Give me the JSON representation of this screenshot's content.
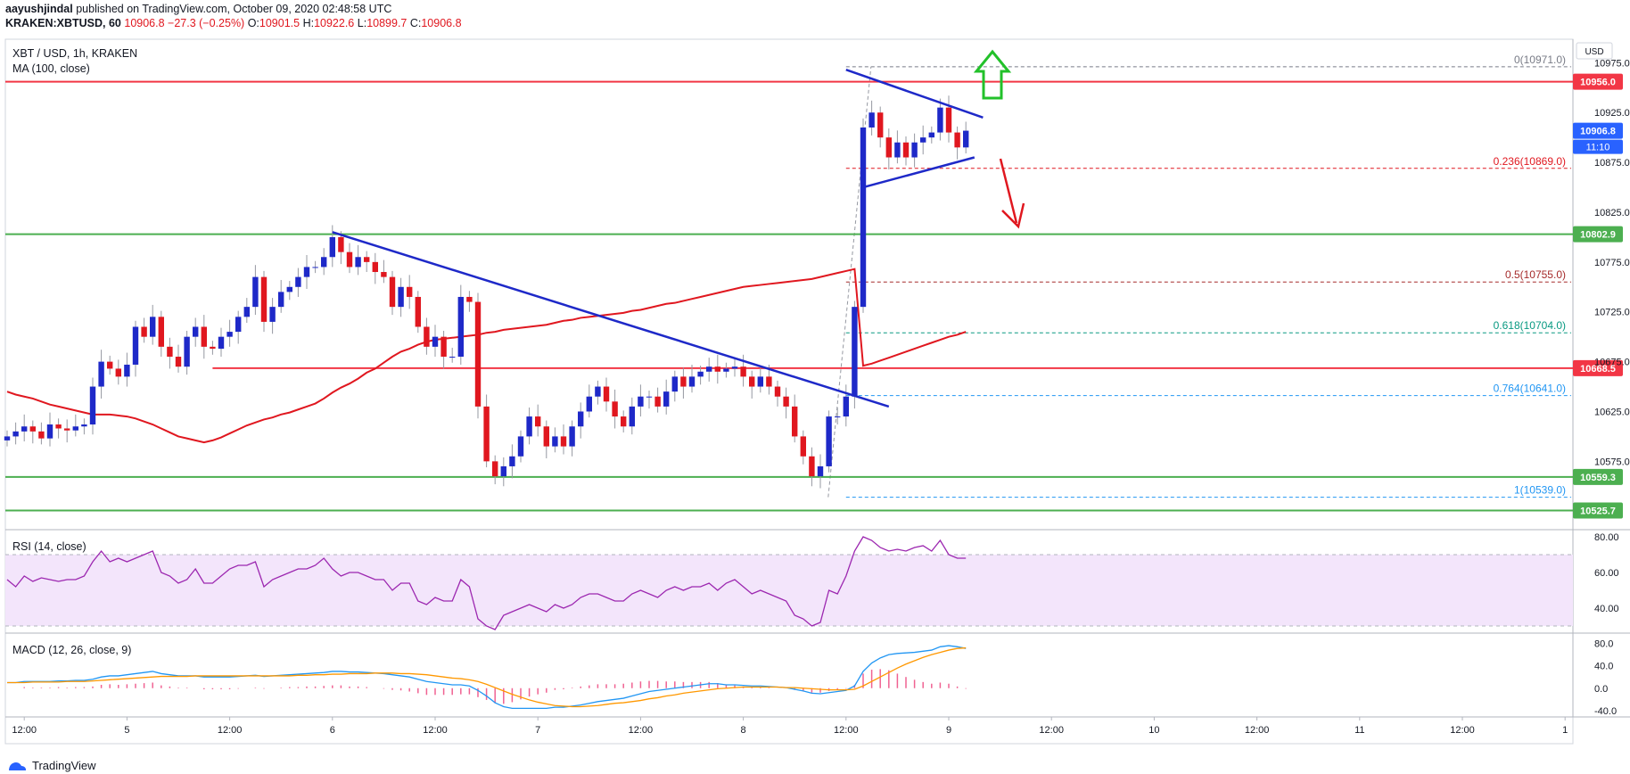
{
  "header": {
    "author": "aayushjindal",
    "published_text": "published on TradingView.com, October 09, 2020 02:48:58 UTC",
    "symbol": "KRAKEN:XBTUSD, 60",
    "last": "10906.8",
    "change": "−27.3 (−0.25%)",
    "ohlc": {
      "o_label": "O:",
      "o": "10901.5",
      "h_label": "H:",
      "h": "10922.6",
      "l_label": "L:",
      "l": "10899.7",
      "c_label": "C:",
      "c": "10906.8"
    }
  },
  "chart_data": {
    "type": "candlestick",
    "title": "XBT / USD, 1h, KRAKEN",
    "currency_label": "USD",
    "indicator": "MA (100, close)",
    "ylim": [
      10510,
      10995
    ],
    "y_ticks": [
      10575.0,
      10625.0,
      10675.0,
      10725.0,
      10775.0,
      10825.0,
      10875.0,
      10925.0,
      10975.0
    ],
    "x_ticks": [
      {
        "label": "12:00",
        "i": 2
      },
      {
        "label": "5",
        "i": 14
      },
      {
        "label": "12:00",
        "i": 26
      },
      {
        "label": "6",
        "i": 38
      },
      {
        "label": "12:00",
        "i": 50
      },
      {
        "label": "7",
        "i": 62
      },
      {
        "label": "12:00",
        "i": 74
      },
      {
        "label": "8",
        "i": 86
      },
      {
        "label": "12:00",
        "i": 98
      },
      {
        "label": "9",
        "i": 110
      },
      {
        "label": "12:00",
        "i": 122
      },
      {
        "label": "10",
        "i": 134
      },
      {
        "label": "12:00",
        "i": 146
      },
      {
        "label": "11",
        "i": 158
      },
      {
        "label": "12:00",
        "i": 170
      },
      {
        "label": "1",
        "i": 182
      }
    ],
    "closes": [
      10600,
      10605,
      10610,
      10605,
      10598,
      10612,
      10608,
      10606,
      10610,
      10612,
      10650,
      10675,
      10668,
      10660,
      10672,
      10710,
      10700,
      10720,
      10690,
      10680,
      10670,
      10700,
      10710,
      10690,
      10688,
      10700,
      10705,
      10720,
      10730,
      10760,
      10715,
      10730,
      10745,
      10750,
      10760,
      10770,
      10770,
      10780,
      10800,
      10785,
      10770,
      10780,
      10775,
      10765,
      10760,
      10730,
      10750,
      10740,
      10710,
      10690,
      10700,
      10680,
      10680,
      10740,
      10735,
      10630,
      10575,
      10560,
      10570,
      10580,
      10600,
      10620,
      10610,
      10590,
      10600,
      10590,
      10610,
      10625,
      10640,
      10650,
      10635,
      10620,
      10610,
      10630,
      10640,
      10640,
      10630,
      10645,
      10660,
      10650,
      10660,
      10665,
      10670,
      10665,
      10668,
      10670,
      10660,
      10650,
      10660,
      10650,
      10640,
      10630,
      10600,
      10580,
      10560,
      10570,
      10620,
      10620,
      10640,
      10730,
      10910,
      10925,
      10900,
      10880,
      10895,
      10880,
      10895,
      10900,
      10905,
      10930,
      10905,
      10890,
      10906.8
    ],
    "ma100": [
      10645,
      10642,
      10640,
      10638,
      10635,
      10632,
      10630,
      10628,
      10626,
      10624,
      10622,
      10622,
      10622,
      10621,
      10620,
      10618,
      10615,
      10612,
      10608,
      10604,
      10600,
      10598,
      10596,
      10594,
      10596,
      10599,
      10603,
      10607,
      10611,
      10614,
      10617,
      10619,
      10622,
      10624,
      10627,
      10630,
      10633,
      10638,
      10644,
      10649,
      10653,
      10658,
      10664,
      10668,
      10674,
      10680,
      10685,
      10688,
      10692,
      10695,
      10697,
      10698,
      10699,
      10700,
      10701,
      10702,
      10704,
      10705,
      10707,
      10708,
      10709,
      10710,
      10711,
      10712,
      10714,
      10716,
      10717,
      10719,
      10720,
      10721,
      10722,
      10723,
      10724,
      10726,
      10727,
      10729,
      10731,
      10733,
      10734,
      10736,
      10738,
      10740,
      10742,
      10744,
      10746,
      10748,
      10750,
      10751,
      10752,
      10753,
      10754,
      10755,
      10756,
      10757,
      10758,
      10760,
      10762,
      10764,
      10766,
      10768,
      10671,
      10673,
      10676,
      10679,
      10682,
      10685,
      10688,
      10691,
      10694,
      10697,
      10700,
      10702,
      10705
    ],
    "horizontal_levels": [
      {
        "value": 10956.0,
        "label": "10956.0",
        "color": "#f23645"
      },
      {
        "value": 10802.9,
        "label": "10802.9",
        "color": "#4caf50"
      },
      {
        "value": 10668.5,
        "label": "10668.5",
        "color": "#f23645"
      },
      {
        "value": 10559.3,
        "label": "10559.3",
        "color": "#4caf50"
      },
      {
        "value": 10525.7,
        "label": "10525.7",
        "color": "#4caf50"
      }
    ],
    "current_price": {
      "value": 10906.8,
      "label": "10906.8",
      "countdown": "11:10"
    },
    "fibonacci": [
      {
        "level": "0(10971.0)",
        "value": 10971.0,
        "color": "#787b86"
      },
      {
        "level": "0.236(10869.0)",
        "value": 10869.0,
        "color": "#e0171f"
      },
      {
        "level": "0.5(10755.0)",
        "value": 10755.0,
        "color": "#a52a2a"
      },
      {
        "level": "0.618(10704.0)",
        "value": 10704.0,
        "color": "#089981"
      },
      {
        "level": "0.764(10641.0)",
        "value": 10641.0,
        "color": "#2196f3"
      },
      {
        "level": "1(10539.0)",
        "value": 10539.0,
        "color": "#2196f3"
      }
    ],
    "trendlines": [
      {
        "from": [
          38,
          10805
        ],
        "to": [
          103,
          10630
        ]
      },
      {
        "from": [
          98,
          10968
        ],
        "to": [
          114,
          10920
        ]
      },
      {
        "from": [
          100,
          10850
        ],
        "to": [
          113,
          10880
        ]
      }
    ],
    "rsi": {
      "label": "RSI (14, close)",
      "ticks": [
        80.0,
        60.0,
        40.0
      ],
      "ylim": [
        28,
        82
      ],
      "band": [
        30,
        70
      ],
      "values": [
        56,
        52,
        58,
        55,
        57,
        56,
        55,
        56,
        56,
        58,
        66,
        72,
        66,
        68,
        66,
        68,
        70,
        72,
        60,
        58,
        54,
        56,
        62,
        54,
        54,
        58,
        62,
        64,
        64,
        66,
        52,
        56,
        58,
        60,
        62,
        62,
        64,
        68,
        62,
        58,
        60,
        60,
        58,
        56,
        56,
        50,
        54,
        54,
        44,
        42,
        46,
        44,
        44,
        56,
        52,
        34,
        30,
        28,
        36,
        38,
        40,
        42,
        40,
        38,
        42,
        40,
        42,
        46,
        48,
        48,
        46,
        44,
        44,
        48,
        50,
        48,
        46,
        50,
        52,
        50,
        52,
        52,
        54,
        50,
        54,
        56,
        52,
        48,
        50,
        48,
        46,
        44,
        36,
        34,
        30,
        32,
        50,
        48,
        58,
        72,
        80,
        78,
        74,
        72,
        73,
        72,
        74,
        75,
        72,
        78,
        70,
        68,
        68
      ],
      "_note": "RSI values are approximations to the visible curve"
    },
    "macd": {
      "label": "MACD (12, 26, close, 9)",
      "ticks": [
        80.0,
        40.0,
        0.0,
        -40.0
      ],
      "ylim": [
        -45,
        92
      ],
      "macd_line": [
        10,
        10,
        12,
        12,
        12,
        12,
        13,
        13,
        14,
        14,
        16,
        20,
        22,
        22,
        24,
        26,
        28,
        30,
        26,
        24,
        22,
        22,
        22,
        20,
        20,
        20,
        20,
        21,
        22,
        23,
        21,
        22,
        23,
        24,
        25,
        26,
        27,
        28,
        30,
        30,
        29,
        29,
        28,
        27,
        26,
        24,
        22,
        20,
        16,
        12,
        10,
        8,
        6,
        6,
        4,
        -4,
        -14,
        -26,
        -33,
        -36,
        -36,
        -36,
        -36,
        -36,
        -34,
        -34,
        -32,
        -30,
        -27,
        -24,
        -22,
        -20,
        -18,
        -14,
        -10,
        -6,
        -4,
        -2,
        0,
        2,
        4,
        6,
        8,
        8,
        6,
        6,
        5,
        4,
        4,
        3,
        2,
        1,
        -2,
        -5,
        -9,
        -10,
        -8,
        -6,
        -4,
        4,
        30,
        45,
        54,
        60,
        62,
        63,
        64,
        66,
        68,
        74,
        76,
        74,
        71
      ],
      "signal_line": [
        10,
        10,
        10,
        11,
        11,
        11,
        11,
        12,
        12,
        12,
        13,
        14,
        15,
        16,
        17,
        18,
        19,
        20,
        21,
        21,
        21,
        21,
        22,
        22,
        22,
        22,
        22,
        22,
        22,
        22,
        22,
        22,
        22,
        22,
        23,
        23,
        24,
        24,
        25,
        25,
        26,
        26,
        26,
        27,
        27,
        27,
        26,
        26,
        25,
        24,
        22,
        20,
        18,
        17,
        15,
        12,
        7,
        1,
        -5,
        -11,
        -16,
        -21,
        -25,
        -28,
        -31,
        -32,
        -33,
        -33,
        -32,
        -31,
        -29,
        -27,
        -26,
        -24,
        -22,
        -19,
        -17,
        -14,
        -12,
        -9,
        -7,
        -5,
        -3,
        -1,
        0,
        1,
        2,
        2,
        2,
        2,
        2,
        1,
        1,
        0,
        -1,
        -2,
        -3,
        -3,
        -3,
        -2,
        4,
        12,
        20,
        28,
        36,
        43,
        49,
        55,
        60,
        64,
        68,
        71,
        72
      ],
      "_note": "MACD values are approximations to the visible curves"
    }
  },
  "footer": {
    "brand": "TradingView"
  }
}
